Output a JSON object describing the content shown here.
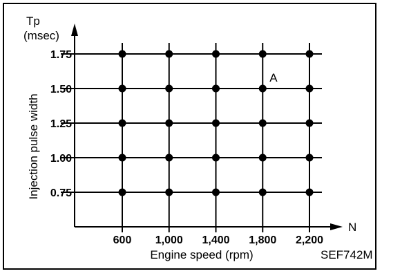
{
  "chart_data": {
    "type": "scatter",
    "title": "",
    "xlabel": "Engine speed (rpm)",
    "ylabel": "Injection pulse width",
    "y_axis_symbol": "Tp",
    "y_axis_unit": "(msec)",
    "x_axis_symbol": "N",
    "figure_code": "SEF742M",
    "x_ticks": [
      "600",
      "1,000",
      "1,400",
      "1,800",
      "2,200"
    ],
    "y_ticks": [
      "0.75",
      "1.00",
      "1.25",
      "1.50",
      "1.75"
    ],
    "x_values": [
      600,
      1000,
      1400,
      1800,
      2200
    ],
    "y_values": [
      0.75,
      1.0,
      1.25,
      1.5,
      1.75
    ],
    "grid": true,
    "annotation": {
      "label": "A",
      "x": 1800,
      "y": 1.5
    }
  },
  "colors": {
    "ink": "#000000",
    "background": "#ffffff"
  }
}
